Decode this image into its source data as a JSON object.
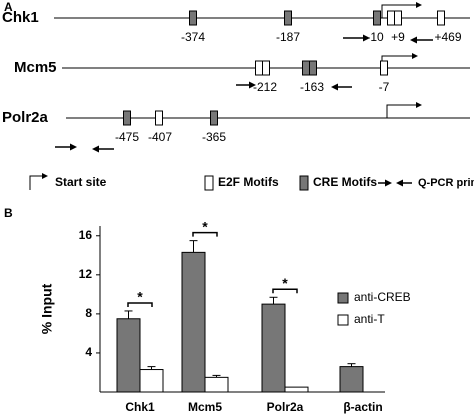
{
  "panel_a": {
    "label": "A",
    "genes": [
      {
        "name": "Chk1",
        "sites": [
          {
            "label": "-374",
            "color": "#777777"
          },
          {
            "label": "-187",
            "color": "#777777"
          },
          {
            "label": "-10",
            "color": "#777777"
          },
          {
            "label": "+9",
            "color": "#ffffff"
          },
          {
            "label": "+469",
            "color": "#ffffff"
          }
        ]
      },
      {
        "name": "Mcm5",
        "sites": [
          {
            "label": "-212",
            "color": "#ffffff"
          },
          {
            "label": "-163",
            "color": "#777777"
          },
          {
            "label": "-7",
            "color": "#ffffff"
          }
        ]
      },
      {
        "name": "Polr2a",
        "sites": [
          {
            "label": "-475",
            "color": "#777777"
          },
          {
            "label": "-407",
            "color": "#ffffff"
          },
          {
            "label": "-365",
            "color": "#777777"
          }
        ]
      }
    ],
    "legend": {
      "start_site": "Start site",
      "e2f": "E2F Motifs",
      "cre": "CRE Motifs",
      "primers": "Q-PCR primers"
    }
  },
  "chart_data": {
    "type": "bar",
    "panel_label": "B",
    "y_label": "% Input",
    "categories": [
      "Chk1",
      "Mcm5",
      "Polr2a",
      "β-actin"
    ],
    "series": [
      {
        "name": "anti-CREB",
        "color": "#777777",
        "values": [
          7.5,
          14.3,
          9.0,
          2.6
        ],
        "errors": [
          0.8,
          1.2,
          0.7,
          0.3
        ]
      },
      {
        "name": "anti-T",
        "color": "#ffffff",
        "values": [
          2.3,
          1.5,
          0.5,
          null
        ],
        "errors": [
          0.3,
          0.2,
          null,
          null
        ]
      }
    ],
    "significance_labels": [
      "*",
      "*",
      "*",
      null
    ],
    "ylim": [
      0,
      17
    ],
    "yticks": [
      4,
      8,
      12,
      16
    ],
    "legend": "right"
  }
}
